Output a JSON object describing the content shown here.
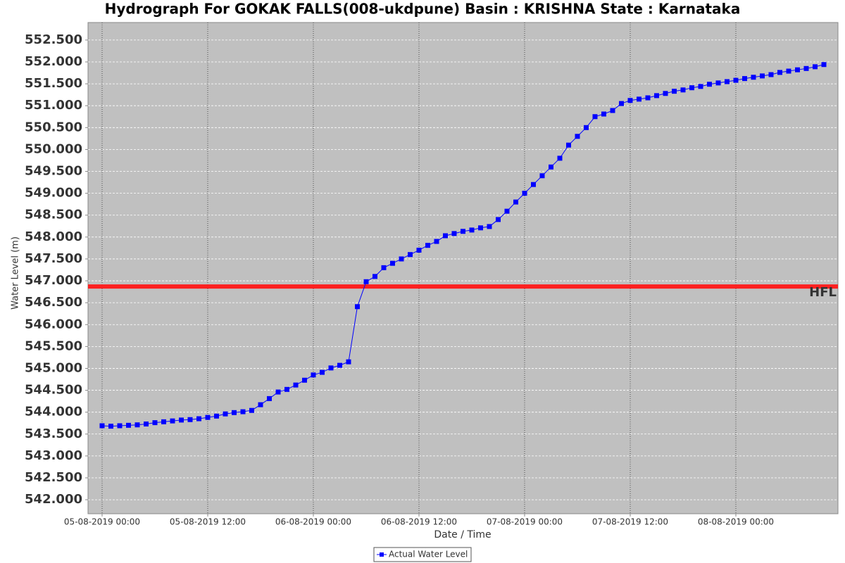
{
  "chart_data": {
    "type": "line",
    "title": "Hydrograph For GOKAK FALLS(008-ukdpune) Basin : KRISHNA State : Karnataka",
    "x_label": "Date / Time",
    "y_label": "Water Level (m)",
    "x": [
      "05-08-2019 00:00",
      "05-08-2019 01:00",
      "05-08-2019 02:00",
      "05-08-2019 03:00",
      "05-08-2019 04:00",
      "05-08-2019 05:00",
      "05-08-2019 06:00",
      "05-08-2019 07:00",
      "05-08-2019 08:00",
      "05-08-2019 09:00",
      "05-08-2019 10:00",
      "05-08-2019 11:00",
      "05-08-2019 12:00",
      "05-08-2019 13:00",
      "05-08-2019 14:00",
      "05-08-2019 15:00",
      "05-08-2019 16:00",
      "05-08-2019 17:00",
      "05-08-2019 18:00",
      "05-08-2019 19:00",
      "05-08-2019 20:00",
      "05-08-2019 21:00",
      "05-08-2019 22:00",
      "05-08-2019 23:00",
      "06-08-2019 00:00",
      "06-08-2019 01:00",
      "06-08-2019 02:00",
      "06-08-2019 03:00",
      "06-08-2019 04:00",
      "06-08-2019 05:00",
      "06-08-2019 06:00",
      "06-08-2019 07:00",
      "06-08-2019 08:00",
      "06-08-2019 09:00",
      "06-08-2019 10:00",
      "06-08-2019 11:00",
      "06-08-2019 12:00",
      "06-08-2019 13:00",
      "06-08-2019 14:00",
      "06-08-2019 15:00",
      "06-08-2019 16:00",
      "06-08-2019 17:00",
      "06-08-2019 18:00",
      "06-08-2019 19:00",
      "06-08-2019 20:00",
      "06-08-2019 21:00",
      "06-08-2019 22:00",
      "06-08-2019 23:00",
      "07-08-2019 00:00",
      "07-08-2019 01:00",
      "07-08-2019 02:00",
      "07-08-2019 03:00",
      "07-08-2019 04:00",
      "07-08-2019 05:00",
      "07-08-2019 06:00",
      "07-08-2019 07:00",
      "07-08-2019 08:00",
      "07-08-2019 09:00",
      "07-08-2019 10:00",
      "07-08-2019 11:00",
      "07-08-2019 12:00",
      "07-08-2019 13:00",
      "07-08-2019 14:00",
      "07-08-2019 15:00",
      "07-08-2019 16:00",
      "07-08-2019 17:00",
      "07-08-2019 18:00",
      "07-08-2019 19:00",
      "07-08-2019 20:00",
      "07-08-2019 21:00",
      "07-08-2019 22:00",
      "07-08-2019 23:00",
      "08-08-2019 00:00",
      "08-08-2019 01:00",
      "08-08-2019 02:00",
      "08-08-2019 03:00",
      "08-08-2019 04:00",
      "08-08-2019 05:00",
      "08-08-2019 06:00",
      "08-08-2019 07:00",
      "08-08-2019 08:00",
      "08-08-2019 09:00",
      "08-08-2019 10:00"
    ],
    "series": [
      {
        "name": "Actual Water Level",
        "color": "#0000ff",
        "values": [
          543.69,
          543.68,
          543.69,
          543.7,
          543.71,
          543.73,
          543.76,
          543.78,
          543.8,
          543.82,
          543.83,
          543.85,
          543.88,
          543.91,
          543.96,
          543.99,
          544.01,
          544.04,
          544.17,
          544.31,
          544.46,
          544.52,
          544.62,
          544.73,
          544.85,
          544.91,
          545.01,
          545.07,
          545.15,
          546.41,
          546.98,
          547.1,
          547.3,
          547.4,
          547.5,
          547.6,
          547.7,
          547.81,
          547.9,
          548.03,
          548.08,
          548.13,
          548.16,
          548.21,
          548.24,
          548.4,
          548.59,
          548.8,
          549.0,
          549.2,
          549.4,
          549.6,
          549.8,
          550.1,
          550.3,
          550.5,
          550.75,
          550.81,
          550.89,
          551.05,
          551.12,
          551.15,
          551.18,
          551.23,
          551.28,
          551.33,
          551.36,
          551.41,
          551.44,
          551.49,
          551.52,
          551.55,
          551.58,
          551.62,
          551.65,
          551.68,
          551.71,
          551.76,
          551.79,
          551.82,
          551.85,
          551.89,
          551.94
        ]
      }
    ],
    "reference_lines": [
      {
        "label": "HFL",
        "value": 546.87,
        "color": "#ff2020"
      }
    ],
    "xlim": [
      "04-08-2019 22:24",
      "08-08-2019 11:36"
    ],
    "xticks": [
      "05-08-2019 00:00",
      "05-08-2019 12:00",
      "06-08-2019 00:00",
      "06-08-2019 12:00",
      "07-08-2019 00:00",
      "07-08-2019 12:00",
      "08-08-2019 00:00"
    ],
    "ylim": [
      541.68,
      552.9
    ],
    "yticks": [
      {
        "value": 542,
        "label": "542.000"
      },
      {
        "value": 542.5,
        "label": "542.500"
      },
      {
        "value": 543,
        "label": "543.000"
      },
      {
        "value": 543.5,
        "label": "543.500"
      },
      {
        "value": 544,
        "label": "544.000"
      },
      {
        "value": 544.5,
        "label": "544.500"
      },
      {
        "value": 545,
        "label": "545.000"
      },
      {
        "value": 545.5,
        "label": "545.500"
      },
      {
        "value": 546,
        "label": "546.000"
      },
      {
        "value": 546.5,
        "label": "546.500"
      },
      {
        "value": 547,
        "label": "547.000"
      },
      {
        "value": 547.5,
        "label": "547.500"
      },
      {
        "value": 548,
        "label": "548.000"
      },
      {
        "value": 548.5,
        "label": "548.500"
      },
      {
        "value": 549,
        "label": "549.000"
      },
      {
        "value": 549.5,
        "label": "549.500"
      },
      {
        "value": 550,
        "label": "550.000"
      },
      {
        "value": 550.5,
        "label": "550.500"
      },
      {
        "value": 551,
        "label": "551.000"
      },
      {
        "value": 551.5,
        "label": "551.500"
      },
      {
        "value": 552,
        "label": "552.000"
      },
      {
        "value": 552.5,
        "label": "552.500"
      }
    ],
    "grid": true,
    "legend": "bottom"
  }
}
